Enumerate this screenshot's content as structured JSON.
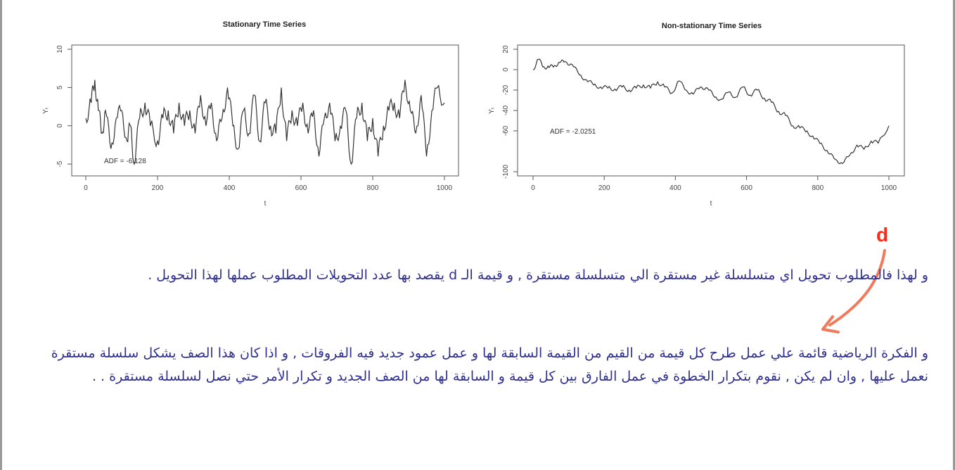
{
  "chart_data": [
    {
      "type": "line",
      "title": "Stationary Time Series",
      "xlabel": "t",
      "ylabel": "Yₜ",
      "xlim": [
        0,
        1000
      ],
      "ylim": [
        -6,
        10
      ],
      "xticks": [
        0,
        200,
        400,
        600,
        800,
        1000
      ],
      "yticks": [
        -5,
        0,
        5,
        10
      ],
      "annotation": "ADF = -6.128",
      "grid": false,
      "x": [
        0,
        15,
        25,
        35,
        45,
        55,
        70,
        85,
        100,
        115,
        125,
        135,
        150,
        165,
        180,
        200,
        215,
        230,
        245,
        260,
        275,
        290,
        305,
        320,
        335,
        350,
        365,
        380,
        395,
        410,
        425,
        440,
        455,
        470,
        485,
        500,
        515,
        530,
        545,
        560,
        575,
        590,
        605,
        620,
        635,
        650,
        665,
        680,
        695,
        710,
        725,
        740,
        755,
        770,
        785,
        800,
        815,
        830,
        845,
        860,
        875,
        890,
        905,
        920,
        935,
        950,
        965,
        980,
        1000
      ],
      "y": [
        1,
        3,
        6,
        2,
        -1,
        2,
        -3,
        1,
        2,
        -2,
        0,
        -5,
        1,
        3,
        0,
        -2,
        1,
        2,
        -1,
        3,
        0,
        2,
        -1,
        4,
        0,
        3,
        -2,
        1,
        5,
        0,
        -3,
        2,
        -1,
        4,
        -2,
        3,
        0,
        -1,
        5,
        -2,
        2,
        0,
        3,
        -1,
        2,
        -4,
        1,
        3,
        -2,
        0,
        2,
        -5,
        1,
        3,
        -2,
        1,
        -4,
        0,
        2,
        3,
        1,
        6,
        2,
        -1,
        4,
        -4,
        2,
        5,
        3
      ]
    },
    {
      "type": "line",
      "title": "Non-stationary Time Series",
      "xlabel": "t",
      "ylabel": "Yₜ",
      "xlim": [
        0,
        1000
      ],
      "ylim": [
        -100,
        20
      ],
      "xticks": [
        0,
        200,
        400,
        600,
        800,
        1000
      ],
      "yticks": [
        -100,
        -60,
        -40,
        -20,
        0,
        20
      ],
      "ytick_labels": [
        "-100",
        "-60",
        "-40",
        "-20",
        "0",
        "20"
      ],
      "annotation": "ADF = -2.0251",
      "grid": false,
      "x": [
        0,
        15,
        30,
        45,
        60,
        75,
        90,
        110,
        130,
        150,
        170,
        190,
        210,
        230,
        250,
        270,
        290,
        310,
        330,
        350,
        370,
        390,
        410,
        430,
        450,
        470,
        490,
        510,
        530,
        550,
        570,
        590,
        610,
        630,
        650,
        670,
        690,
        710,
        730,
        750,
        770,
        790,
        810,
        830,
        850,
        870,
        890,
        910,
        930,
        950,
        970,
        1000
      ],
      "y": [
        0,
        10,
        3,
        2,
        4,
        7,
        8,
        5,
        -5,
        -10,
        -15,
        -17,
        -18,
        -19,
        -17,
        -20,
        -18,
        -15,
        -18,
        -12,
        -17,
        -23,
        -11,
        -20,
        -24,
        -17,
        -18,
        -27,
        -29,
        -22,
        -27,
        -17,
        -25,
        -20,
        -28,
        -32,
        -41,
        -45,
        -55,
        -57,
        -60,
        -68,
        -72,
        -82,
        -88,
        -92,
        -84,
        -74,
        -78,
        -70,
        -72,
        -55
      ]
    }
  ],
  "text": {
    "marker": "d",
    "paragraph1": "و لهذا فالمطلوب تحويل اي متسلسلة غير مستقرة الي متسلسلة مستقرة , و قيمة الـ d يقصد بها عدد التحويلات المطلوب عملها لهذا التحويل .",
    "paragraph2": "و الفكرة الرياضية قائمة علي عمل طرح كل قيمة من القيم من القيمة السابقة لها و عمل عمود جديد فيه الفروقات , و اذا كان هذا الصف يشكل سلسلة مستقرة نعمل عليها , وان لم يكن , نقوم بتكرار الخطوة في عمل الفارق بين كل قيمة و السابقة لها من الصف الجديد و تكرار الأمر حتي نصل لسلسلة مستقرة . ."
  },
  "colors": {
    "line": "#333333",
    "text": "#2f2f8f",
    "marker": "#ff2a1a"
  }
}
